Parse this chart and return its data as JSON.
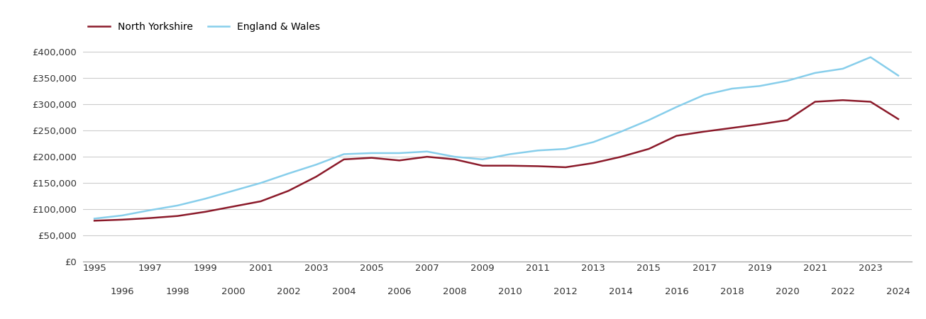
{
  "north_yorkshire": {
    "years": [
      1995,
      1996,
      1997,
      1998,
      1999,
      2000,
      2001,
      2002,
      2003,
      2004,
      2005,
      2006,
      2007,
      2008,
      2009,
      2010,
      2011,
      2012,
      2013,
      2014,
      2015,
      2016,
      2017,
      2018,
      2019,
      2020,
      2021,
      2022,
      2023,
      2024
    ],
    "values": [
      78000,
      80000,
      83000,
      87000,
      95000,
      105000,
      115000,
      135000,
      162000,
      195000,
      198000,
      193000,
      200000,
      195000,
      183000,
      183000,
      182000,
      180000,
      188000,
      200000,
      215000,
      240000,
      248000,
      255000,
      262000,
      270000,
      305000,
      308000,
      305000,
      272000
    ]
  },
  "england_wales": {
    "years": [
      1995,
      1996,
      1997,
      1998,
      1999,
      2000,
      2001,
      2002,
      2003,
      2004,
      2005,
      2006,
      2007,
      2008,
      2009,
      2010,
      2011,
      2012,
      2013,
      2014,
      2015,
      2016,
      2017,
      2018,
      2019,
      2020,
      2021,
      2022,
      2023,
      2024
    ],
    "values": [
      82000,
      88000,
      98000,
      107000,
      120000,
      135000,
      150000,
      168000,
      185000,
      205000,
      207000,
      207000,
      210000,
      200000,
      195000,
      205000,
      212000,
      215000,
      228000,
      248000,
      270000,
      295000,
      318000,
      330000,
      335000,
      345000,
      360000,
      368000,
      390000,
      355000
    ]
  },
  "north_yorkshire_color": "#8B1A2A",
  "england_wales_color": "#87CEEB",
  "north_yorkshire_label": "North Yorkshire",
  "england_wales_label": "England & Wales",
  "ylim": [
    0,
    420000
  ],
  "yticks": [
    0,
    50000,
    100000,
    150000,
    200000,
    250000,
    300000,
    350000,
    400000
  ],
  "xlim_start": 1994.6,
  "xlim_end": 2024.5,
  "xticks_top": [
    1995,
    1997,
    1999,
    2001,
    2003,
    2005,
    2007,
    2009,
    2011,
    2013,
    2015,
    2017,
    2019,
    2021,
    2023
  ],
  "xticks_bottom": [
    1996,
    1998,
    2000,
    2002,
    2004,
    2006,
    2008,
    2010,
    2012,
    2014,
    2016,
    2018,
    2020,
    2022,
    2024
  ],
  "background_color": "#ffffff",
  "grid_color": "#cccccc",
  "line_width": 1.8,
  "legend_fontsize": 10,
  "tick_fontsize": 9.5
}
